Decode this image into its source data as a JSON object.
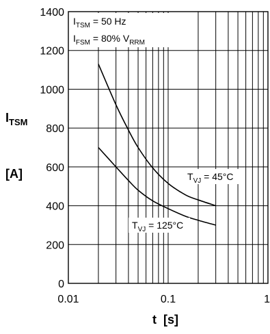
{
  "chart_data": {
    "type": "line",
    "x_scale": "log",
    "xlim": [
      0.01,
      1
    ],
    "ylim": [
      0,
      1400
    ],
    "grid": true,
    "x_ticks": [
      "0.01",
      "0.1",
      "1"
    ],
    "y_ticks": [
      "0",
      "200",
      "400",
      "600",
      "800",
      "1000",
      "1200",
      "1400"
    ],
    "xlabel": {
      "main": "t",
      "unit": "[s]"
    },
    "ylabel": {
      "main": "I",
      "sub": "TSM",
      "unit": "[A]"
    },
    "legend_box": [
      {
        "main": "I",
        "sub": "TSM",
        "rest": " = 50 Hz"
      },
      {
        "main": "I",
        "sub": "FSM",
        "rest": " = 80% V",
        "sub2": "RRM"
      }
    ],
    "series": [
      {
        "name": {
          "main": "T",
          "sub": "VJ",
          "rest": " = 45°C"
        },
        "x": [
          0.02,
          0.03,
          0.04,
          0.05,
          0.07,
          0.1,
          0.15,
          0.2,
          0.3
        ],
        "y": [
          1130,
          920,
          790,
          700,
          595,
          515,
          455,
          430,
          400
        ]
      },
      {
        "name": {
          "main": "T",
          "sub": "VJ",
          "rest": " = 125°C"
        },
        "x": [
          0.02,
          0.03,
          0.04,
          0.05,
          0.07,
          0.1,
          0.15,
          0.2,
          0.3
        ],
        "y": [
          700,
          600,
          530,
          480,
          425,
          385,
          345,
          325,
          300
        ]
      }
    ]
  }
}
